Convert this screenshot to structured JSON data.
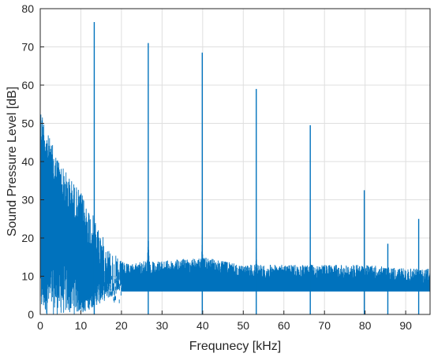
{
  "chart_data": {
    "type": "line",
    "title": "",
    "xlabel": "Frequnecy [kHz]",
    "ylabel": "Sound Pressure Level [dB]",
    "xlim": [
      0,
      96
    ],
    "ylim": [
      0,
      80
    ],
    "x_ticks": [
      "0",
      "10",
      "20",
      "30",
      "40",
      "50",
      "60",
      "70",
      "80",
      "90"
    ],
    "y_ticks": [
      "0",
      "10",
      "20",
      "30",
      "40",
      "50",
      "60",
      "70",
      "80"
    ],
    "grid": true,
    "line_color": "#0072bd",
    "series": [
      {
        "peaks": [
          {
            "x": 13.3,
            "y": 76.5
          },
          {
            "x": 26.6,
            "y": 71.0
          },
          {
            "x": 39.9,
            "y": 68.5
          },
          {
            "x": 53.2,
            "y": 59.0
          },
          {
            "x": 66.5,
            "y": 49.5
          },
          {
            "x": 79.8,
            "y": 32.5
          },
          {
            "x": 85.6,
            "y": 18.5
          },
          {
            "x": 93.2,
            "y": 25.0
          }
        ],
        "envelope": [
          {
            "x": 0,
            "y": 55
          },
          {
            "x": 2,
            "y": 47
          },
          {
            "x": 4,
            "y": 42
          },
          {
            "x": 6,
            "y": 38
          },
          {
            "x": 8,
            "y": 35
          },
          {
            "x": 10,
            "y": 32
          },
          {
            "x": 12,
            "y": 28
          },
          {
            "x": 14,
            "y": 24
          },
          {
            "x": 16,
            "y": 19
          },
          {
            "x": 18,
            "y": 16
          },
          {
            "x": 20,
            "y": 14
          },
          {
            "x": 22,
            "y": 13
          },
          {
            "x": 25,
            "y": 14
          },
          {
            "x": 30,
            "y": 14
          },
          {
            "x": 40,
            "y": 15
          },
          {
            "x": 50,
            "y": 13
          },
          {
            "x": 60,
            "y": 13
          },
          {
            "x": 70,
            "y": 13
          },
          {
            "x": 80,
            "y": 13
          },
          {
            "x": 90,
            "y": 12
          },
          {
            "x": 96,
            "y": 12
          }
        ],
        "noise_floor": [
          {
            "x": 0,
            "y": 0
          },
          {
            "x": 10,
            "y": 0
          },
          {
            "x": 20,
            "y": 6
          },
          {
            "x": 96,
            "y": 6
          }
        ]
      }
    ]
  }
}
